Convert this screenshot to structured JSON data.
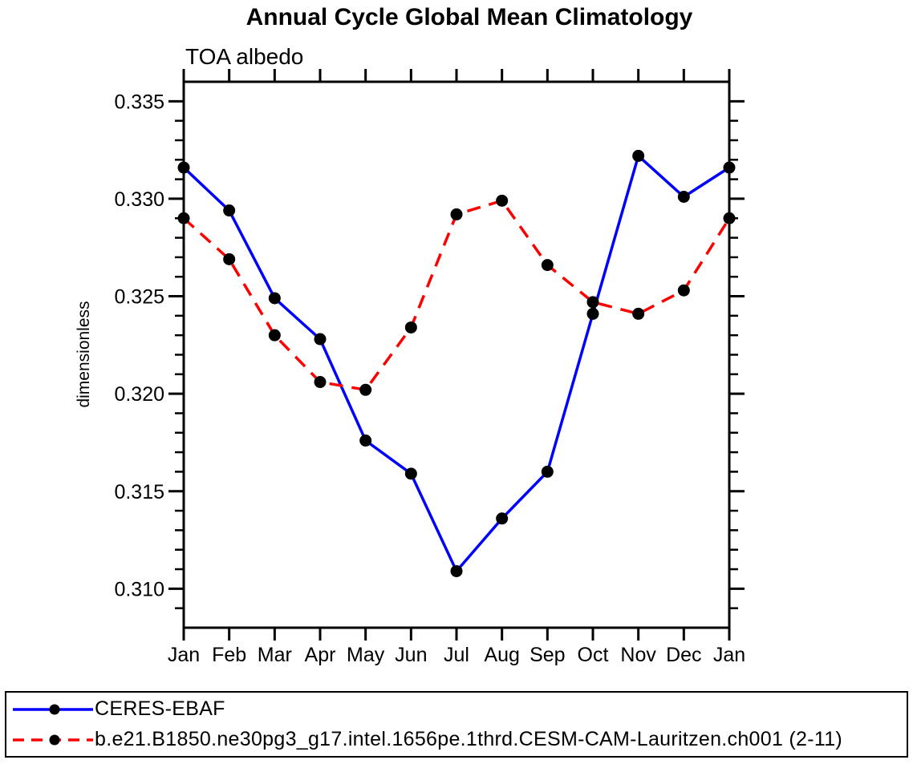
{
  "chart_data": {
    "type": "line",
    "title": "Annual Cycle Global Mean Climatology",
    "subtitle_left": "TOA albedo",
    "ylabel": "dimensionless",
    "categories": [
      "Jan",
      "Feb",
      "Mar",
      "Apr",
      "May",
      "Jun",
      "Jul",
      "Aug",
      "Sep",
      "Oct",
      "Nov",
      "Dec",
      "Jan"
    ],
    "ylim": [
      0.308,
      0.336
    ],
    "y_tick_labels": [
      "0.310",
      "0.315",
      "0.320",
      "0.325",
      "0.330",
      "0.335"
    ],
    "y_minor_step": 0.001,
    "grid": false,
    "legend_position": "bottom",
    "background_color": "#ffffff",
    "axis_color": "#000000",
    "series": [
      {
        "name": "CERES-EBAF",
        "color": "#0000ff",
        "line_style": "solid",
        "marker": "circle",
        "marker_color": "#000000",
        "values": [
          0.3316,
          0.3294,
          0.3249,
          0.3228,
          0.3176,
          0.3159,
          0.3109,
          0.3136,
          0.316,
          0.3241,
          0.3322,
          0.3301,
          0.3316
        ]
      },
      {
        "name": "b.e21.B1850.ne30pg3_g17.intel.1656pe.1thrd.CESM-CAM-Lauritzen.ch001 (2-11)",
        "color": "#ff0000",
        "line_style": "dashed",
        "marker": "circle",
        "marker_color": "#000000",
        "values": [
          0.329,
          0.3269,
          0.323,
          0.3206,
          0.3202,
          0.3234,
          0.3292,
          0.3299,
          0.3266,
          0.3247,
          0.3241,
          0.3253,
          0.329
        ]
      }
    ]
  }
}
